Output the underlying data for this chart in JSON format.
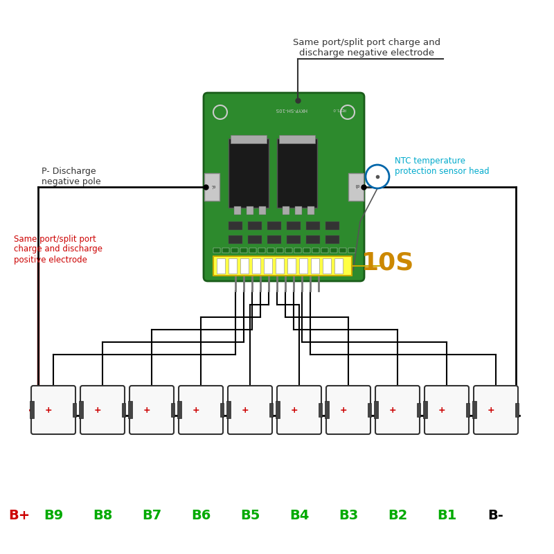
{
  "bg_color": "#ffffff",
  "board_color": "#2d8a2d",
  "board_edge_color": "#1a5c1a",
  "title_text": "Same port/split port charge and\ndischarge negative electrode",
  "p_discharge_text": "P- Discharge\nnegative pole",
  "positive_text": "Same port/split port\ncharge and discharge\npositive electrode",
  "ntc_text": "NTC temperature\nprotection sensor head",
  "label_10s_text": "10S",
  "battery_labels": [
    "B+",
    "B9",
    "B8",
    "B7",
    "B6",
    "B5",
    "B4",
    "B3",
    "B2",
    "B1",
    "B-"
  ],
  "battery_label_colors": [
    "#cc0000",
    "#00aa00",
    "#00aa00",
    "#00aa00",
    "#00aa00",
    "#00aa00",
    "#00aa00",
    "#00aa00",
    "#00aa00",
    "#00aa00",
    "#000000"
  ],
  "wire_color": "#000000",
  "red_wire_color": "#cc0000",
  "mosfet_color": "#1a1a1a",
  "pad_color": "#c8c8c8",
  "yellow_connector_color": "#ccaa00",
  "ntc_circle_color": "#0066aa",
  "watermark_color": "#cccccc"
}
